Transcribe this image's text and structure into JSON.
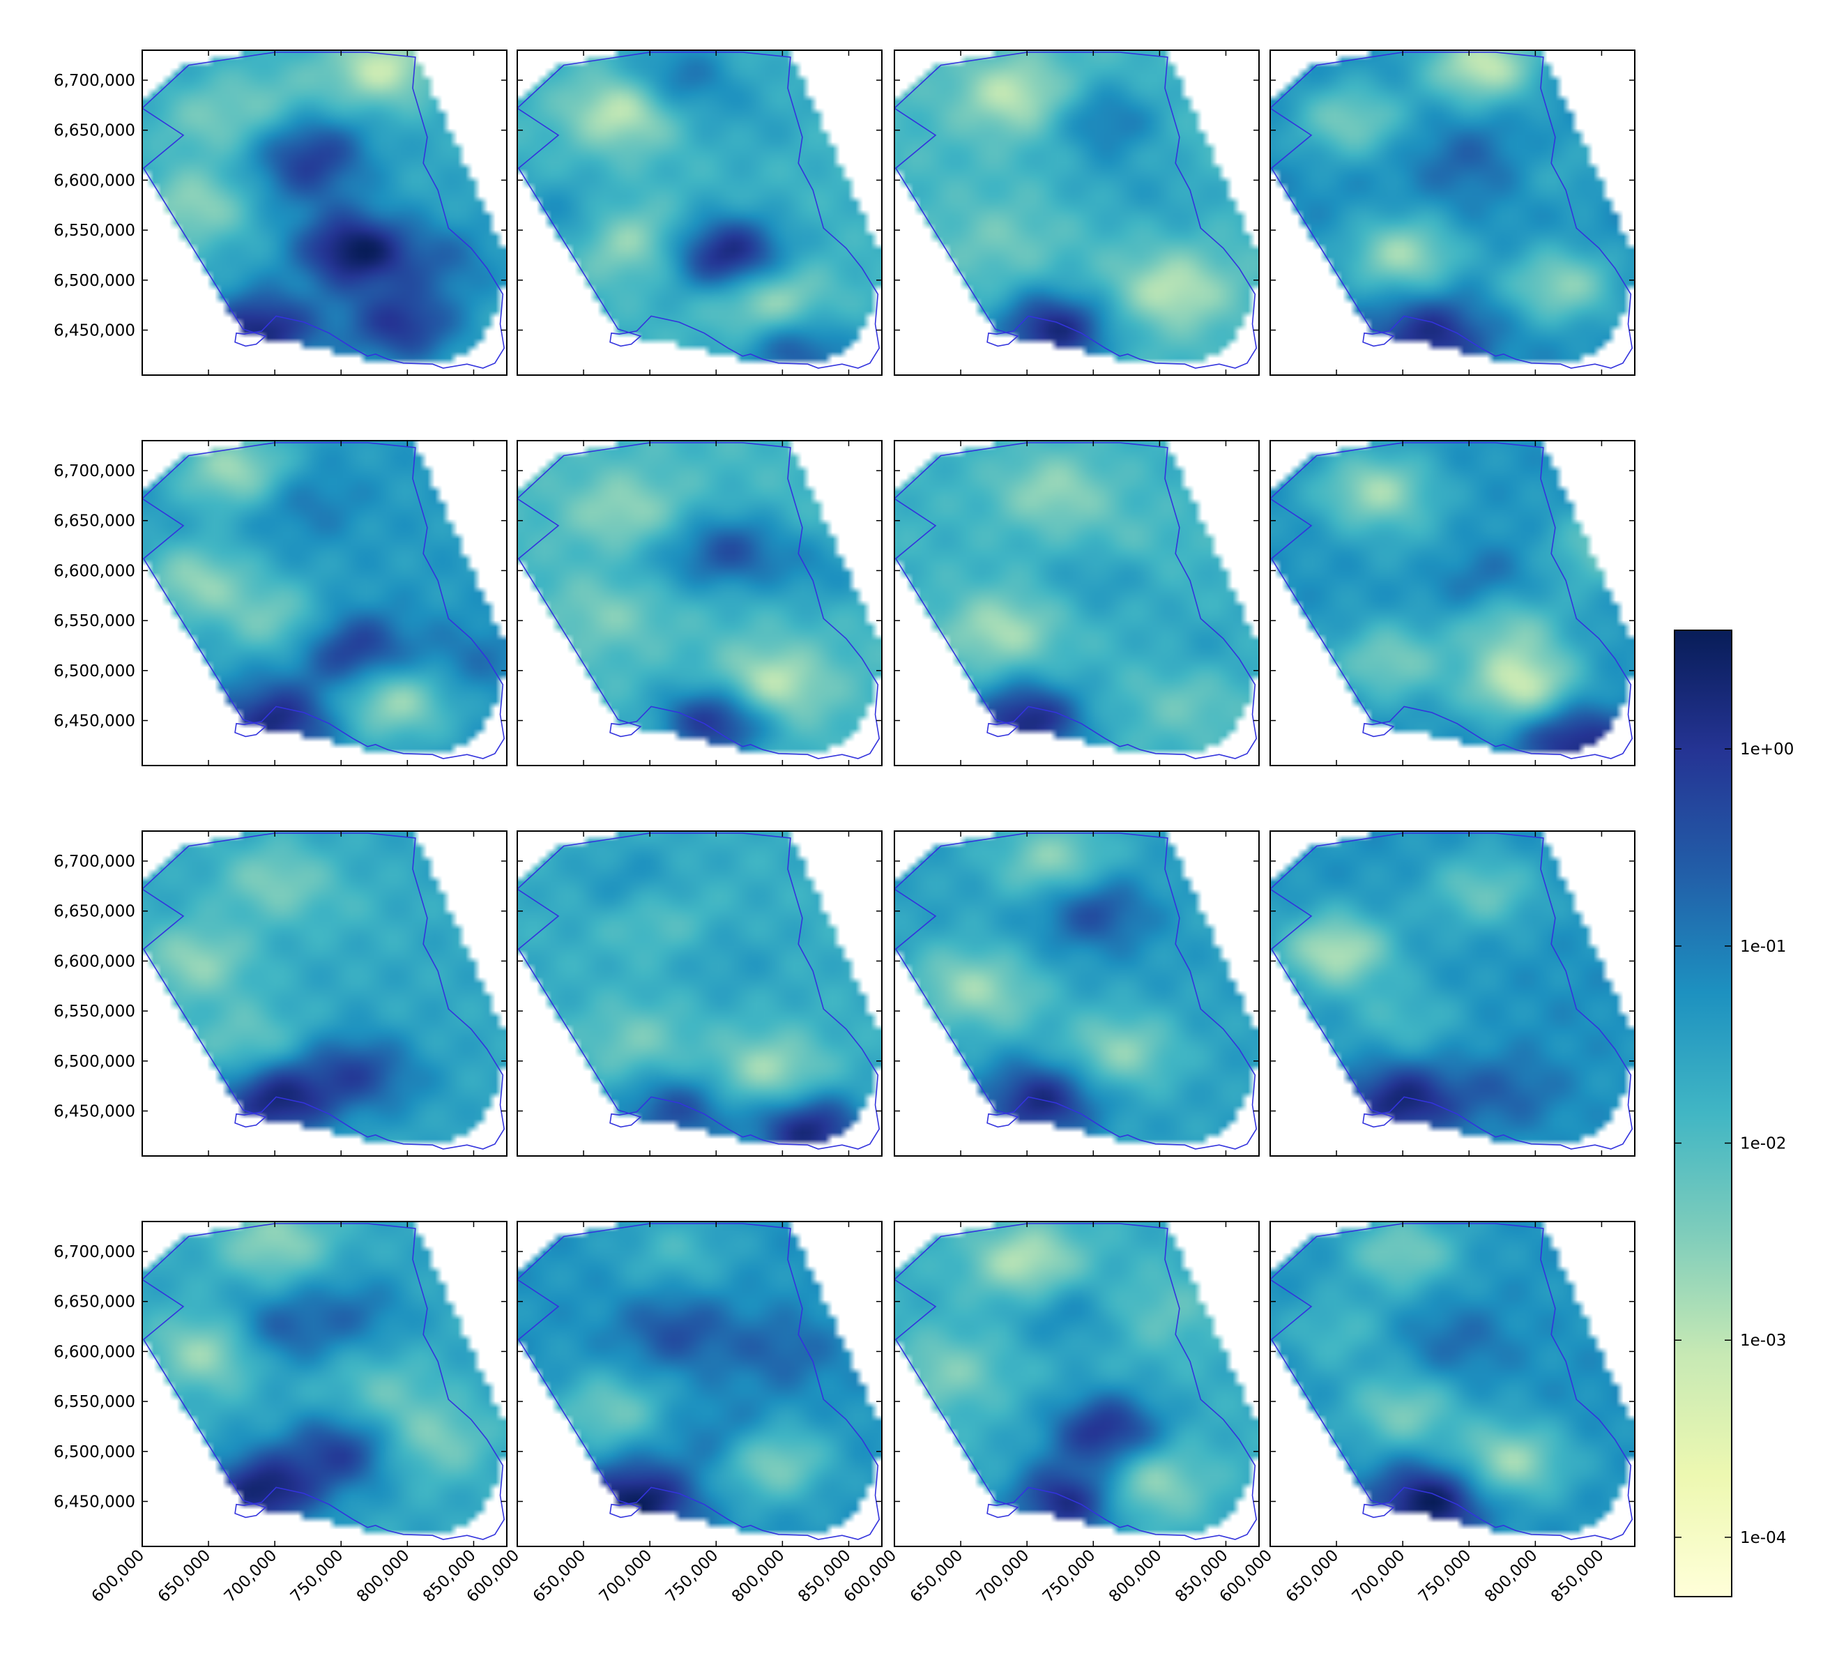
{
  "chart_data": {
    "type": "heatmap",
    "title": "",
    "layout": {
      "rows": 4,
      "cols": 4
    },
    "x_ticks": [
      600000,
      650000,
      700000,
      750000,
      800000,
      850000
    ],
    "x_tick_labels": [
      "600,000",
      "650,000",
      "700,000",
      "750,000",
      "800,000",
      "850,000"
    ],
    "y_ticks": [
      6450000,
      6500000,
      6550000,
      6600000,
      6650000,
      6700000
    ],
    "y_tick_labels": [
      "6,450,000",
      "6,500,000",
      "6,550,000",
      "6,600,000",
      "6,650,000",
      "6,700,000"
    ],
    "xlim": [
      600000,
      875000
    ],
    "ylim": [
      6405000,
      6730000
    ],
    "colorbar": {
      "scale": "log",
      "ticks": [
        0.0001,
        0.001,
        0.01,
        0.1,
        1
      ],
      "tick_labels": [
        "1e-04",
        "1e-03",
        "1e-02",
        "1e-01",
        "1e+00"
      ],
      "range": [
        5e-05,
        4
      ],
      "colormap": "YlGnBu",
      "colors": [
        "#ffffd9",
        "#edf8b1",
        "#c7e9b4",
        "#7fcdbb",
        "#41b6c4",
        "#1d91c0",
        "#225ea8",
        "#253494",
        "#081d58"
      ]
    },
    "boundary_color": "#3333dd",
    "panels": [
      {
        "blobs": [
          [
            700000,
            6685000,
            -2.2
          ],
          [
            760000,
            6530000,
            0.9
          ],
          [
            690000,
            6450000,
            0.6
          ],
          [
            795000,
            6455000,
            0.2
          ],
          [
            640000,
            6575000,
            -2.8
          ],
          [
            780000,
            6712000,
            -3.3
          ],
          [
            650000,
            6660000,
            -2.4
          ],
          [
            730000,
            6630000,
            -0.3
          ],
          [
            720000,
            6600000,
            -0.9
          ],
          [
            830000,
            6520000,
            -0.8
          ]
        ],
        "base": -1.6
      },
      {
        "blobs": [
          [
            680000,
            6670000,
            -3.4
          ],
          [
            790000,
            6480000,
            -3.2
          ],
          [
            760000,
            6525000,
            0.7
          ],
          [
            680000,
            6540000,
            -3.0
          ],
          [
            640000,
            6560000,
            -1.0
          ],
          [
            810000,
            6430000,
            -0.3
          ],
          [
            720000,
            6700000,
            -0.6
          ],
          [
            780000,
            6660000,
            -1.5
          ]
        ],
        "base": -1.8
      },
      {
        "blobs": [
          [
            690000,
            6685000,
            -3.2
          ],
          [
            760000,
            6660000,
            -0.8
          ],
          [
            720000,
            6450000,
            0.6
          ],
          [
            810000,
            6490000,
            -3.2
          ],
          [
            680000,
            6540000,
            -2.4
          ],
          [
            760000,
            6600000,
            -1.6
          ],
          [
            810000,
            6580000,
            -1.5
          ]
        ],
        "base": -1.9
      },
      {
        "blobs": [
          [
            760000,
            6715000,
            -3.4
          ],
          [
            660000,
            6660000,
            -2.6
          ],
          [
            700000,
            6525000,
            -3.0
          ],
          [
            820000,
            6495000,
            -2.8
          ],
          [
            720000,
            6445000,
            0.4
          ],
          [
            750000,
            6620000,
            -0.6
          ],
          [
            820000,
            6610000,
            -1.7
          ]
        ],
        "base": -1.2
      },
      {
        "blobs": [
          [
            670000,
            6700000,
            -3.0
          ],
          [
            720000,
            6670000,
            -0.8
          ],
          [
            760000,
            6520000,
            0.2
          ],
          [
            700000,
            6450000,
            0.5
          ],
          [
            790000,
            6470000,
            -3.0
          ],
          [
            640000,
            6590000,
            -2.8
          ],
          [
            700000,
            6550000,
            -2.5
          ],
          [
            850000,
            6510000,
            -0.8
          ]
        ],
        "base": -1.4
      },
      {
        "blobs": [
          [
            680000,
            6660000,
            -2.8
          ],
          [
            790000,
            6485000,
            -3.4
          ],
          [
            750000,
            6450000,
            0.4
          ],
          [
            670000,
            6560000,
            -2.6
          ],
          [
            760000,
            6620000,
            -0.3
          ],
          [
            700000,
            6600000,
            -1.5
          ],
          [
            830000,
            6600000,
            -1.2
          ]
        ],
        "base": -1.9
      },
      {
        "blobs": [
          [
            720000,
            6680000,
            -2.8
          ],
          [
            680000,
            6540000,
            -3.0
          ],
          [
            700000,
            6450000,
            0.6
          ],
          [
            820000,
            6470000,
            -2.4
          ],
          [
            760000,
            6600000,
            -1.0
          ],
          [
            770000,
            6620000,
            -2.4
          ],
          [
            830000,
            6520000,
            -1.4
          ]
        ],
        "base": -1.8
      },
      {
        "blobs": [
          [
            680000,
            6680000,
            -3.0
          ],
          [
            790000,
            6485000,
            -3.4
          ],
          [
            830000,
            6430000,
            0.5
          ],
          [
            690000,
            6510000,
            -2.6
          ],
          [
            760000,
            6590000,
            -0.6
          ],
          [
            780000,
            6545000,
            -2.5
          ],
          [
            850000,
            6620000,
            -2.4
          ],
          [
            720000,
            6620000,
            -1.6
          ]
        ],
        "base": -1.3
      },
      {
        "blobs": [
          [
            700000,
            6680000,
            -2.6
          ],
          [
            700000,
            6460000,
            0.6
          ],
          [
            760000,
            6490000,
            -0.2
          ],
          [
            640000,
            6600000,
            -2.8
          ],
          [
            680000,
            6520000,
            -2.4
          ],
          [
            760000,
            6650000,
            -1.8
          ],
          [
            800000,
            6470000,
            -1.4
          ]
        ],
        "base": -1.6
      },
      {
        "blobs": [
          [
            700000,
            6650000,
            -2.6
          ],
          [
            790000,
            6490000,
            -3.0
          ],
          [
            820000,
            6430000,
            0.6
          ],
          [
            690000,
            6520000,
            -2.5
          ],
          [
            690000,
            6670000,
            -0.8
          ],
          [
            760000,
            6600000,
            -1.4
          ],
          [
            720000,
            6450000,
            -0.2
          ]
        ],
        "base": -1.7
      },
      {
        "blobs": [
          [
            720000,
            6700000,
            -2.8
          ],
          [
            710000,
            6460000,
            0.5
          ],
          [
            770000,
            6510000,
            -2.8
          ],
          [
            650000,
            6580000,
            -2.5
          ],
          [
            750000,
            6650000,
            -0.2
          ],
          [
            680000,
            6560000,
            -2.2
          ],
          [
            790000,
            6600000,
            -1.4
          ]
        ],
        "base": -1.5
      },
      {
        "blobs": [
          [
            650000,
            6610000,
            -3.2
          ],
          [
            700000,
            6460000,
            0.6
          ],
          [
            780000,
            6470000,
            -0.6
          ],
          [
            760000,
            6670000,
            -2.4
          ],
          [
            830000,
            6550000,
            -1.2
          ],
          [
            700000,
            6540000,
            -2.0
          ]
        ],
        "base": -1.3
      },
      {
        "blobs": [
          [
            700000,
            6710000,
            -2.8
          ],
          [
            690000,
            6460000,
            0.7
          ],
          [
            750000,
            6500000,
            0.0
          ],
          [
            650000,
            6600000,
            -3.0
          ],
          [
            820000,
            6510000,
            -2.6
          ],
          [
            700000,
            6620000,
            -0.5
          ],
          [
            760000,
            6640000,
            -0.8
          ],
          [
            780000,
            6560000,
            -2.3
          ]
        ],
        "base": -1.6
      },
      {
        "blobs": [
          [
            690000,
            6450000,
            0.9
          ],
          [
            790000,
            6490000,
            -2.9
          ],
          [
            670000,
            6540000,
            -2.5
          ],
          [
            720000,
            6700000,
            -2.0
          ],
          [
            720000,
            6620000,
            -0.3
          ],
          [
            800000,
            6600000,
            -0.6
          ],
          [
            760000,
            6510000,
            -0.6
          ]
        ],
        "base": -1.3
      },
      {
        "blobs": [
          [
            700000,
            6690000,
            -3.2
          ],
          [
            640000,
            6580000,
            -2.6
          ],
          [
            760000,
            6520000,
            0.4
          ],
          [
            730000,
            6450000,
            0.5
          ],
          [
            790000,
            6470000,
            -3.0
          ],
          [
            730000,
            6640000,
            -1.0
          ],
          [
            800000,
            6640000,
            -2.3
          ]
        ],
        "base": -1.7
      },
      {
        "blobs": [
          [
            720000,
            6450000,
            0.9
          ],
          [
            780000,
            6490000,
            -3.0
          ],
          [
            700000,
            6540000,
            -2.6
          ],
          [
            700000,
            6700000,
            -2.6
          ],
          [
            740000,
            6610000,
            -0.7
          ],
          [
            650000,
            6620000,
            -2.0
          ],
          [
            840000,
            6560000,
            -1.2
          ]
        ],
        "base": -1.3
      }
    ],
    "hull": [
      [
        600000,
        6680000
      ],
      [
        628000,
        6712000
      ],
      [
        676000,
        6728000
      ],
      [
        730000,
        6731000
      ],
      [
        806000,
        6728000
      ],
      [
        875000,
        6525000
      ],
      [
        870000,
        6470000
      ],
      [
        852000,
        6434000
      ],
      [
        830000,
        6418000
      ],
      [
        790000,
        6416000
      ],
      [
        676000,
        6447000
      ],
      [
        600000,
        6612000
      ]
    ],
    "region": [
      [
        600000,
        6672000
      ],
      [
        635000,
        6715000
      ],
      [
        700000,
        6728000
      ],
      [
        770000,
        6728000
      ],
      [
        806000,
        6723000
      ],
      [
        804000,
        6692000
      ],
      [
        815000,
        6643000
      ],
      [
        812000,
        6617000
      ],
      [
        823000,
        6590000
      ],
      [
        831000,
        6552000
      ],
      [
        848000,
        6532000
      ],
      [
        860000,
        6512000
      ],
      [
        872000,
        6486000
      ],
      [
        870000,
        6456000
      ],
      [
        873000,
        6432000
      ],
      [
        866000,
        6417000
      ],
      [
        857000,
        6412000
      ],
      [
        845000,
        6416000
      ],
      [
        827000,
        6412000
      ],
      [
        819000,
        6416000
      ],
      [
        797000,
        6417000
      ],
      [
        785000,
        6421000
      ],
      [
        776000,
        6426000
      ],
      [
        770000,
        6424000
      ],
      [
        759000,
        6432000
      ],
      [
        741000,
        6447000
      ],
      [
        722000,
        6458000
      ],
      [
        701000,
        6464000
      ],
      [
        690000,
        6449000
      ],
      [
        677000,
        6446000
      ],
      [
        671000,
        6447000
      ],
      [
        670000,
        6438000
      ],
      [
        678000,
        6434000
      ],
      [
        686000,
        6436000
      ],
      [
        693000,
        6444000
      ],
      [
        676000,
        6451000
      ],
      [
        601000,
        6612000
      ],
      [
        631000,
        6645000
      ],
      [
        600000,
        6672000
      ]
    ]
  }
}
